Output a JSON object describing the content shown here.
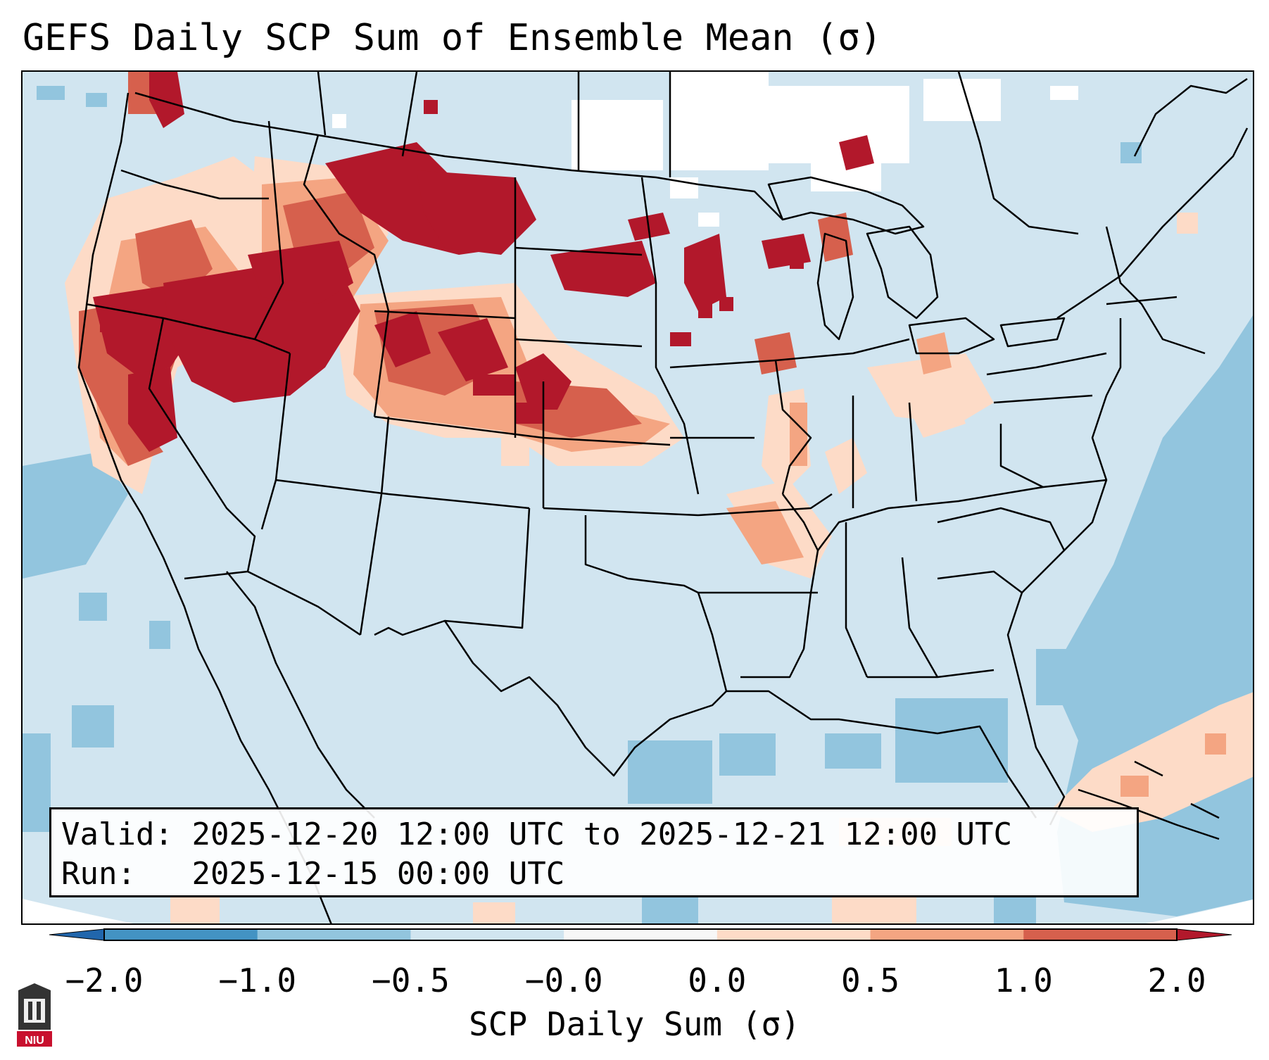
{
  "title": "GEFS Daily SCP Sum of Ensemble Mean (σ)",
  "info": {
    "valid_label": "Valid:",
    "valid_range": "2025-12-20 12:00 UTC to 2025-12-21 12:00 UTC",
    "run_label": "Run:",
    "run_time": "2025-12-15 00:00 UTC"
  },
  "colorbar": {
    "label": "SCP Daily Sum (σ)",
    "ticks": [
      "−2.0",
      "−1.0",
      "−0.5",
      "−0.0",
      "0.0",
      "0.5",
      "1.0",
      "2.0"
    ],
    "bins": [
      {
        "from": -2.0,
        "to": -1.0,
        "color": "#4393c3"
      },
      {
        "from": -1.0,
        "to": -0.5,
        "color": "#92c5de"
      },
      {
        "from": -0.5,
        "to": -0.0,
        "color": "#d1e5f0"
      },
      {
        "from": -0.0,
        "to": 0.0,
        "color": "#f7f7f7"
      },
      {
        "from": 0.0,
        "to": 0.5,
        "color": "#fddbc7"
      },
      {
        "from": 0.5,
        "to": 1.0,
        "color": "#f4a582"
      },
      {
        "from": 1.0,
        "to": 2.0,
        "color": "#d6604d"
      }
    ],
    "under_color": "#2166ac",
    "over_color": "#b2182b"
  },
  "colors": {
    "strong_positive": "#b2182b",
    "positive": "#d6604d",
    "weak_positive": "#f4a582",
    "slight_positive": "#fddbc7",
    "neutral": "#ffffff",
    "slight_negative": "#d1e5f0",
    "negative": "#92c5de"
  },
  "logo": {
    "text": "NIU",
    "name": "Northern Illinois University"
  }
}
